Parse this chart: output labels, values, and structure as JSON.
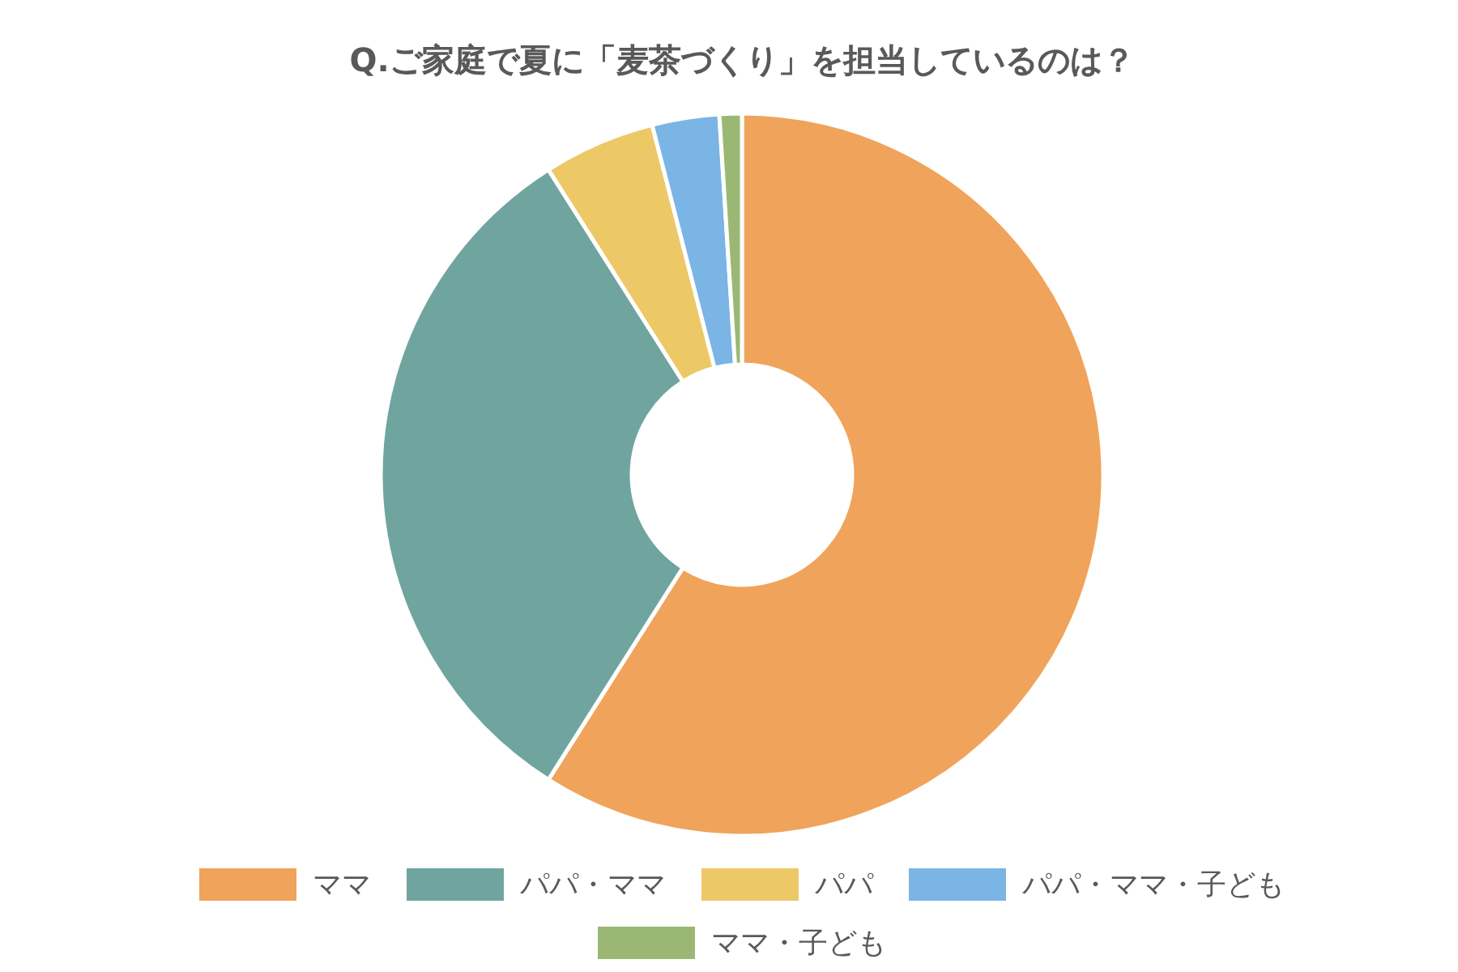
{
  "chart_data": {
    "type": "donut",
    "title": "Q.ご家庭で夏に「麦茶づくり」を担当しているのは？",
    "categories": [
      "ママ",
      "パパ・ママ",
      "パパ",
      "パパ・ママ・子ども",
      "ママ・子ども"
    ],
    "values": [
      59,
      32,
      5,
      3,
      1
    ],
    "colors": [
      "#f0a35a",
      "#70a59f",
      "#ecc867",
      "#7ab5e5",
      "#9ab873"
    ],
    "legend": "bottom"
  }
}
